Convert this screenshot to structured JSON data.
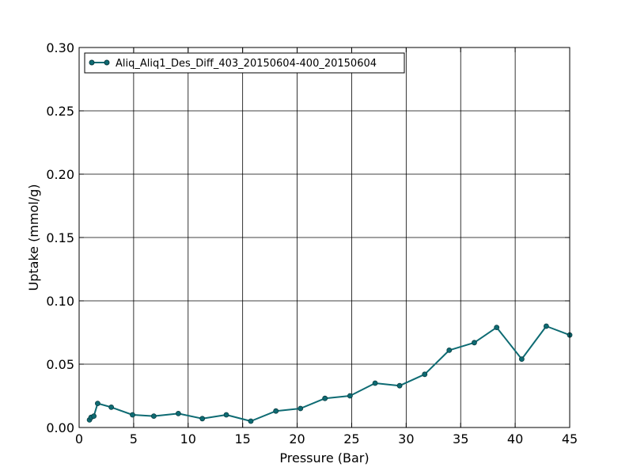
{
  "chart_data": {
    "type": "line",
    "title": "",
    "xlabel": "Pressure (Bar)",
    "ylabel": "Uptake (mmol/g)",
    "xlim": [
      0,
      45
    ],
    "ylim": [
      0.0,
      0.3
    ],
    "xticks": [
      0,
      5,
      10,
      15,
      20,
      25,
      30,
      35,
      40,
      45
    ],
    "yticks": [
      0.0,
      0.05,
      0.1,
      0.15,
      0.2,
      0.25,
      0.3
    ],
    "xtick_labels": [
      "0",
      "5",
      "10",
      "15",
      "20",
      "25",
      "30",
      "35",
      "40",
      "45"
    ],
    "ytick_labels": [
      "0.00",
      "0.05",
      "0.10",
      "0.15",
      "0.20",
      "0.25",
      "0.30"
    ],
    "grid": true,
    "legend_position": "top-left",
    "series": [
      {
        "name": "Aliq_Aliq1_Des_Diff_403_20150604-400_20150604",
        "color": "#0e6b73",
        "marker": "circle",
        "x": [
          0.95,
          1.1,
          1.35,
          1.7,
          2.95,
          4.9,
          6.85,
          9.1,
          11.3,
          13.5,
          15.75,
          18.05,
          20.3,
          22.55,
          24.85,
          27.15,
          29.4,
          31.7,
          33.95,
          36.25,
          38.3,
          40.6,
          42.85,
          45.0
        ],
        "y": [
          0.006,
          0.008,
          0.009,
          0.019,
          0.016,
          0.01,
          0.009,
          0.011,
          0.007,
          0.01,
          0.005,
          0.013,
          0.015,
          0.023,
          0.025,
          0.035,
          0.033,
          0.042,
          0.061,
          0.067,
          0.079,
          0.054,
          0.08,
          0.073
        ]
      }
    ]
  }
}
